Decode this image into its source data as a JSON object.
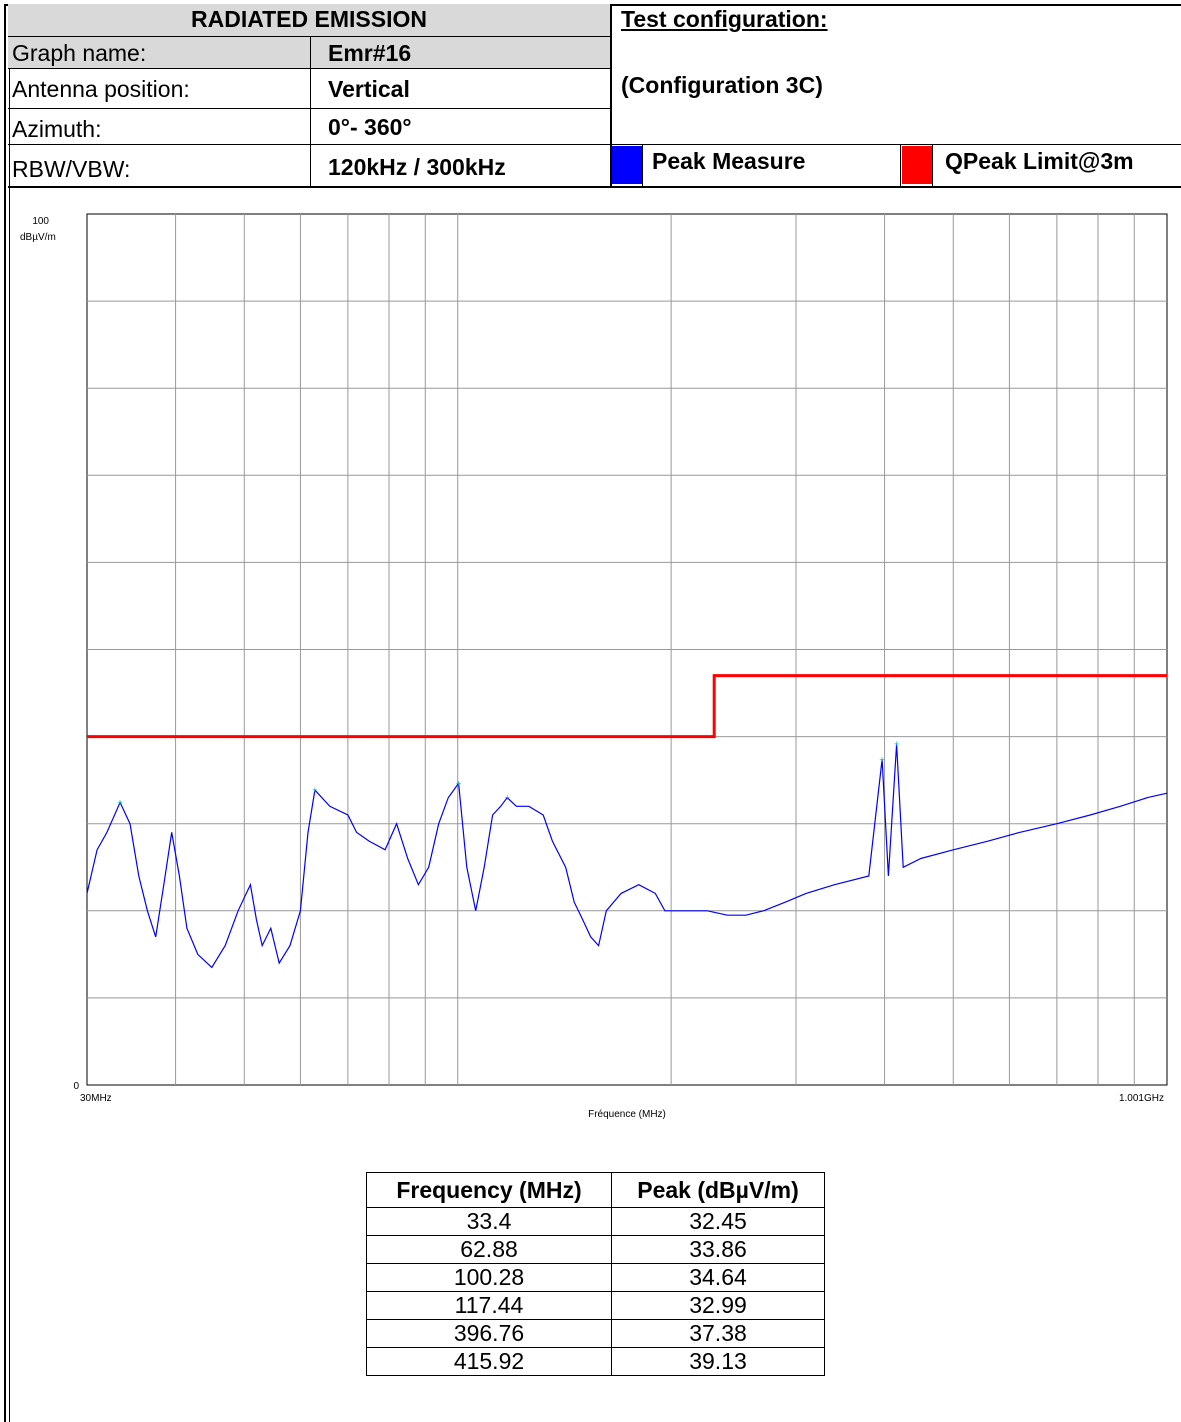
{
  "header": {
    "title": "RADIATED EMISSION",
    "test_config_label": "Test configuration:",
    "test_config_value": "(Configuration 3C)",
    "rows": [
      {
        "label": "Graph name:",
        "value": "Emr#16"
      },
      {
        "label": "Antenna position:",
        "value": "Vertical"
      },
      {
        "label": "Azimuth:",
        "value": "0°- 360°"
      },
      {
        "label": "RBW/VBW:",
        "value": "120kHz / 300kHz"
      }
    ],
    "legend": [
      {
        "label": "Peak Measure",
        "color": "#0000ff"
      },
      {
        "label": "QPeak Limit@3m",
        "color": "#ff0000"
      }
    ]
  },
  "chart_data": {
    "type": "line",
    "x_scale": "log",
    "xlim_mhz": [
      30,
      1001
    ],
    "ylim": [
      0,
      100
    ],
    "y_unit_label": "dBµV/m",
    "y_tick_labels": [
      "100",
      "0"
    ],
    "x_tick_labels": [
      "30MHz",
      "1.001GHz"
    ],
    "xlabel": "Fréquence (MHz)",
    "series": [
      {
        "name": "Peak Measure",
        "color": "#0000ff",
        "points": [
          [
            30,
            22
          ],
          [
            31,
            27
          ],
          [
            32,
            29
          ],
          [
            33.4,
            32.45
          ],
          [
            34.5,
            30
          ],
          [
            35.5,
            24
          ],
          [
            36.5,
            20
          ],
          [
            37.5,
            17
          ],
          [
            38.5,
            23
          ],
          [
            39.5,
            29
          ],
          [
            40.5,
            24
          ],
          [
            41.5,
            18
          ],
          [
            43,
            15
          ],
          [
            45,
            13.5
          ],
          [
            47,
            16
          ],
          [
            49,
            20
          ],
          [
            51,
            23
          ],
          [
            52,
            19
          ],
          [
            53,
            16
          ],
          [
            54.5,
            18
          ],
          [
            56,
            14
          ],
          [
            58,
            16
          ],
          [
            60,
            20
          ],
          [
            61.5,
            29
          ],
          [
            62.88,
            33.86
          ],
          [
            66,
            32
          ],
          [
            70,
            31
          ],
          [
            72,
            29
          ],
          [
            75,
            28
          ],
          [
            79,
            27
          ],
          [
            82,
            30
          ],
          [
            85,
            26
          ],
          [
            88,
            23
          ],
          [
            91,
            25
          ],
          [
            94,
            30
          ],
          [
            97,
            33
          ],
          [
            100.28,
            34.64
          ],
          [
            103,
            25
          ],
          [
            106,
            20
          ],
          [
            109,
            25
          ],
          [
            112,
            31
          ],
          [
            115,
            32
          ],
          [
            117.44,
            32.99
          ],
          [
            121,
            32
          ],
          [
            126,
            32
          ],
          [
            132,
            31
          ],
          [
            136,
            28
          ],
          [
            142,
            25
          ],
          [
            146,
            21
          ],
          [
            150,
            19
          ],
          [
            154,
            17
          ],
          [
            158,
            16
          ],
          [
            162,
            20
          ],
          [
            170,
            22
          ],
          [
            180,
            23
          ],
          [
            190,
            22
          ],
          [
            196,
            20
          ],
          [
            210,
            20
          ],
          [
            225,
            20
          ],
          [
            240,
            19.5
          ],
          [
            255,
            19.5
          ],
          [
            270,
            20
          ],
          [
            290,
            21
          ],
          [
            310,
            22
          ],
          [
            340,
            23
          ],
          [
            380,
            24
          ],
          [
            396.76,
            37.38
          ],
          [
            405,
            24
          ],
          [
            415.92,
            39.13
          ],
          [
            425,
            25
          ],
          [
            450,
            26
          ],
          [
            500,
            27
          ],
          [
            560,
            28
          ],
          [
            620,
            29
          ],
          [
            700,
            30
          ],
          [
            780,
            31
          ],
          [
            860,
            32
          ],
          [
            940,
            33
          ],
          [
            1001,
            33.5
          ]
        ]
      },
      {
        "name": "QPeak Limit@3m",
        "color": "#ff0000",
        "points": [
          [
            30,
            40
          ],
          [
            230,
            40
          ],
          [
            230,
            47
          ],
          [
            1001,
            47
          ]
        ]
      }
    ],
    "marked_peaks": [
      [
        33.4,
        32.45
      ],
      [
        62.88,
        33.86
      ],
      [
        100.28,
        34.64
      ],
      [
        117.44,
        32.99
      ],
      [
        396.76,
        37.38
      ],
      [
        415.92,
        39.13
      ]
    ]
  },
  "table": {
    "headers": [
      "Frequency (MHz)",
      "Peak (dBµV/m)"
    ],
    "rows": [
      [
        "33.4",
        "32.45"
      ],
      [
        "62.88",
        "33.86"
      ],
      [
        "100.28",
        "34.64"
      ],
      [
        "117.44",
        "32.99"
      ],
      [
        "396.76",
        "37.38"
      ],
      [
        "415.92",
        "39.13"
      ]
    ]
  }
}
